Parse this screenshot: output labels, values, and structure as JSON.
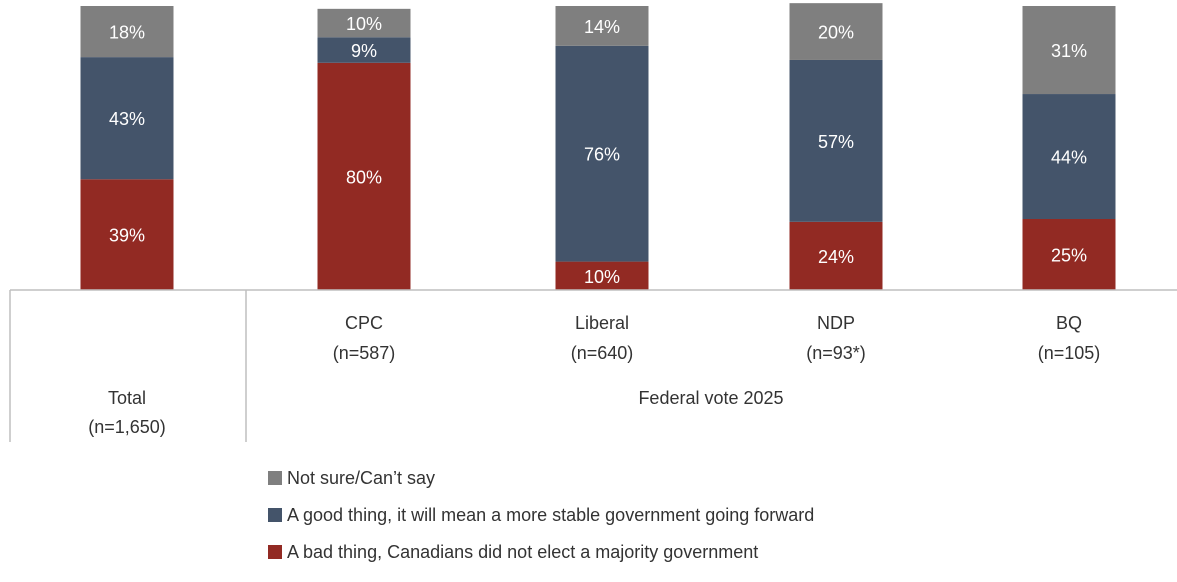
{
  "chart_data": {
    "type": "bar",
    "stacked": true,
    "categories": [
      {
        "name": "Total",
        "n": "(n=1,650)"
      },
      {
        "name": "CPC",
        "n": "(n=587)"
      },
      {
        "name": "Liberal",
        "n": "(n=640)"
      },
      {
        "name": "NDP",
        "n": "(n=93*)"
      },
      {
        "name": "BQ",
        "n": "(n=105)"
      }
    ],
    "group_label": "Federal vote 2025",
    "series": [
      {
        "name": "A bad thing, Canadians did not elect a majority government",
        "color": "#922a23",
        "values": [
          39,
          80,
          10,
          24,
          25
        ]
      },
      {
        "name": "A good thing, it will mean a more stable government going forward",
        "color": "#44546a",
        "values": [
          43,
          9,
          76,
          57,
          44
        ]
      },
      {
        "name": "Not sure/Can’t say",
        "color": "#7f7f7f",
        "values": [
          18,
          10,
          14,
          20,
          31
        ]
      }
    ],
    "ylim": [
      0,
      100
    ],
    "legend_position": "bottom"
  }
}
